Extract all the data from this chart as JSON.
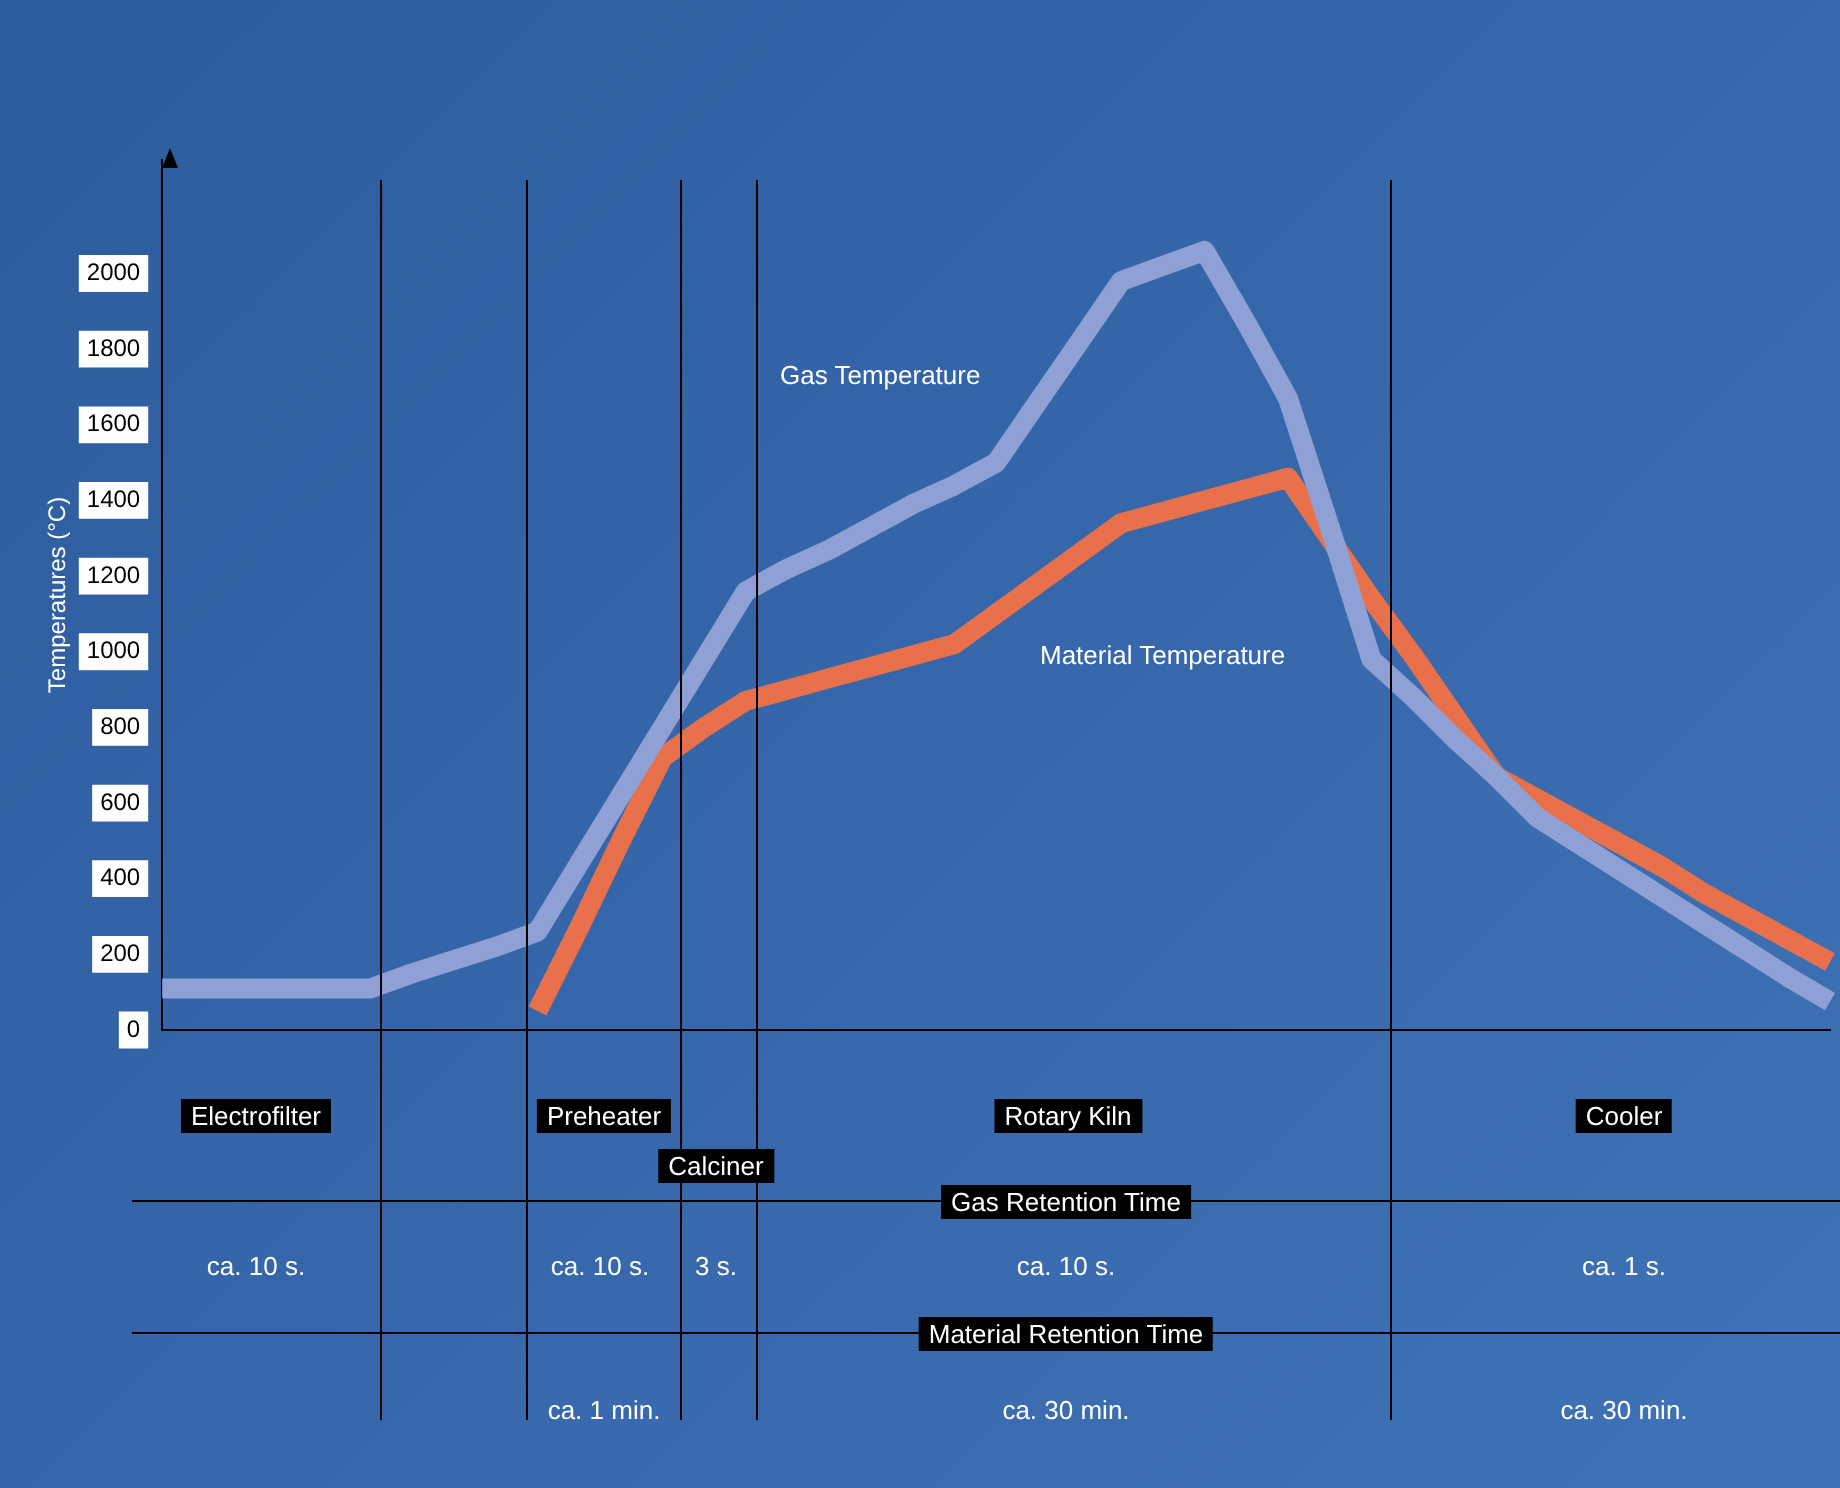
{
  "chart_data": {
    "type": "line",
    "ylabel": "Temperatures (°C)",
    "categories": [
      null,
      null,
      null,
      null,
      null,
      null,
      null,
      null,
      null,
      null,
      null,
      null,
      null,
      null,
      null,
      null,
      null,
      null,
      null,
      null,
      null,
      null,
      null,
      null,
      null,
      null,
      null,
      null,
      null,
      null,
      null,
      null,
      null,
      null,
      null,
      null,
      null,
      null,
      null,
      null,
      null
    ],
    "series": [
      {
        "name": "Gas Temperature",
        "color": "#8fa0d4",
        "values": [
          110,
          110,
          110,
          110,
          110,
          110,
          150,
          185,
          220,
          260,
          440,
          620,
          800,
          980,
          1160,
          1220,
          1270,
          1330,
          1390,
          1440,
          1500,
          1660,
          1820,
          1980,
          2020,
          2060,
          1870,
          1670,
          1330,
          980,
          880,
          770,
          670,
          560,
          490,
          420,
          350,
          280,
          210,
          140,
          75
        ]
      },
      {
        "name": "Material Temperature",
        "color": "#e8704a",
        "values": [
          null,
          null,
          null,
          null,
          null,
          null,
          null,
          null,
          null,
          50,
          270,
          500,
          720,
          800,
          870,
          900,
          930,
          960,
          990,
          1020,
          1100,
          1180,
          1260,
          1340,
          1370,
          1400,
          1430,
          1460,
          1300,
          1140,
          990,
          830,
          670,
          610,
          550,
          490,
          430,
          360,
          300,
          240,
          180
        ]
      }
    ],
    "ylim": [
      0,
      2300
    ],
    "yticks": [
      0,
      200,
      400,
      600,
      800,
      1000,
      1200,
      1400,
      1600,
      1800,
      2000
    ],
    "grid": false,
    "legend": false,
    "tick_labels": "y",
    "marker": "none",
    "line_style": "solid",
    "annotations": [
      "Electrofilter",
      "Preheater",
      "Calciner",
      "Rotary Kiln",
      "Cooler",
      "Gas Retention Time",
      "ca. 10 s.",
      "ca. 10 s.",
      "3 s.",
      "ca. 10 s.",
      "ca. 1 s.",
      "Material Retention Time",
      "ca. 1 min.",
      "ca. 30 min.",
      "ca. 30 min."
    ]
  }
}
